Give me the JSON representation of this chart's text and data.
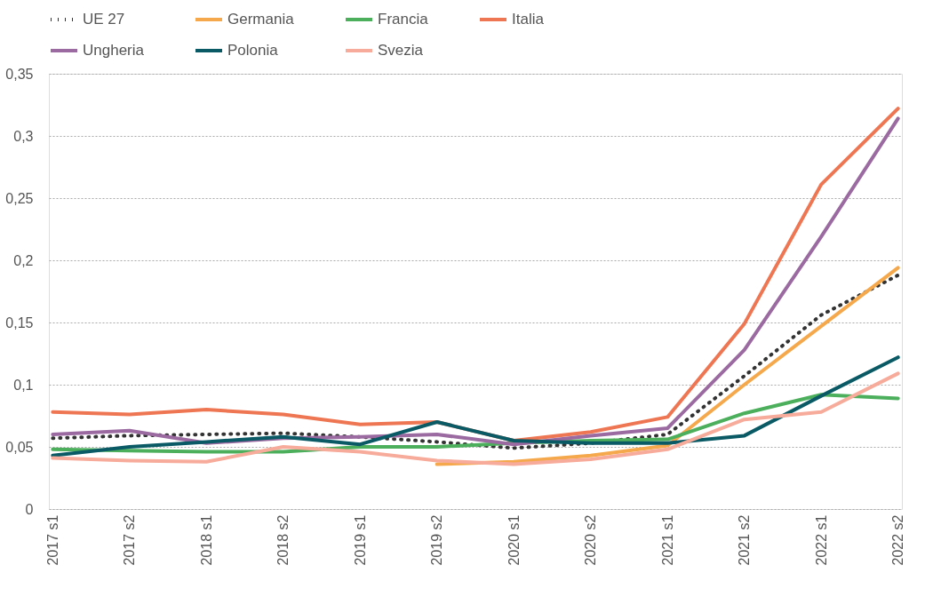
{
  "chart_data": {
    "type": "line",
    "categories": [
      "2017 s1",
      "2017 s2",
      "2018 s1",
      "2018 s2",
      "2019 s1",
      "2019 s2",
      "2020 s1",
      "2020 s2",
      "2021 s1",
      "2021 s2",
      "2022 s1",
      "2022 s2"
    ],
    "series": [
      {
        "name": "UE 27",
        "color": "#333333",
        "line_style": "dotted",
        "values": [
          0.057,
          0.059,
          0.06,
          0.061,
          0.058,
          0.054,
          0.049,
          0.053,
          0.06,
          0.107,
          0.156,
          0.188
        ]
      },
      {
        "name": "Germania",
        "color": "#f5a94c",
        "values": [
          null,
          null,
          null,
          null,
          null,
          0.036,
          0.038,
          0.043,
          0.051,
          0.1,
          0.147,
          0.194
        ]
      },
      {
        "name": "Francia",
        "color": "#4caf5c",
        "values": [
          0.048,
          0.047,
          0.046,
          0.046,
          0.05,
          0.05,
          0.053,
          0.055,
          0.056,
          0.077,
          0.092,
          0.089
        ]
      },
      {
        "name": "Italia",
        "color": "#ef7652",
        "values": [
          0.078,
          0.076,
          0.08,
          0.076,
          0.068,
          0.07,
          0.055,
          0.062,
          0.074,
          0.149,
          0.261,
          0.322
        ]
      },
      {
        "name": "Ungheria",
        "color": "#9a6aa0",
        "values": [
          0.06,
          0.063,
          0.053,
          0.057,
          0.058,
          0.06,
          0.052,
          0.059,
          0.065,
          0.128,
          0.219,
          0.314
        ]
      },
      {
        "name": "Polonia",
        "color": "#0a5a66",
        "values": [
          0.043,
          0.05,
          0.054,
          0.058,
          0.052,
          0.07,
          0.055,
          0.053,
          0.053,
          0.059,
          0.091,
          0.122
        ]
      },
      {
        "name": "Svezia",
        "color": "#f7ab9a",
        "values": [
          0.041,
          0.039,
          0.038,
          0.05,
          0.046,
          0.039,
          0.036,
          0.04,
          0.048,
          0.072,
          0.078,
          0.109
        ]
      }
    ],
    "ylim": [
      0,
      0.35
    ],
    "yticks": [
      0,
      {
        "value": 0.05,
        "label": "0,05"
      },
      {
        "value": 0.1,
        "label": "0,1"
      },
      {
        "value": 0.15,
        "label": "0,15"
      },
      {
        "value": 0.2,
        "label": "0,2"
      },
      {
        "value": 0.25,
        "label": "0,25"
      },
      {
        "value": 0.3,
        "label": "0,3"
      },
      {
        "value": 0.35,
        "label": "0,35"
      }
    ],
    "grid": "y",
    "legend": "top",
    "line_style": "solid",
    "marker": "none"
  }
}
